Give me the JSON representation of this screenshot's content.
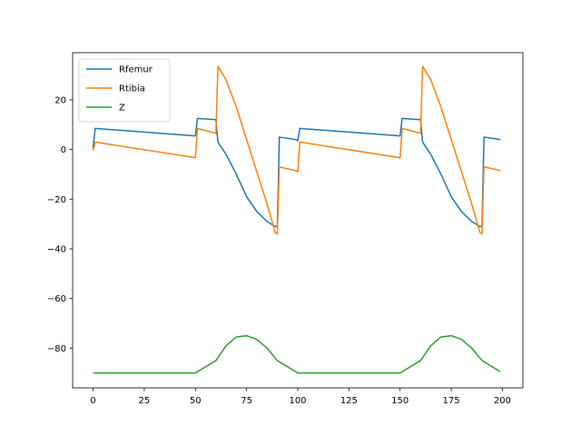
{
  "chart_data": {
    "type": "line",
    "title": "",
    "xlabel": "",
    "ylabel": "",
    "xlim": [
      -10,
      210
    ],
    "ylim": [
      -96,
      39
    ],
    "xticks": [
      0,
      25,
      50,
      75,
      100,
      125,
      150,
      175,
      200
    ],
    "yticks": [
      -80,
      -60,
      -40,
      -20,
      0,
      20
    ],
    "grid": false,
    "legend": "top-left",
    "series": [
      {
        "name": "Rfemur",
        "color": "#1f77b4",
        "x": [
          0,
          1,
          50,
          51,
          60,
          61,
          65,
          70,
          75,
          80,
          85,
          89,
          90,
          91,
          99,
          100,
          101,
          150,
          151,
          160,
          161,
          165,
          170,
          175,
          180,
          185,
          189,
          190,
          191,
          199
        ],
        "y": [
          0.5,
          8.5,
          5.5,
          12.5,
          12,
          3,
          -2,
          -10,
          -19,
          -25,
          -29,
          -31,
          -31,
          5,
          4,
          3.5,
          8.5,
          5.5,
          12.5,
          12,
          3,
          -2,
          -10,
          -19,
          -25,
          -29,
          -31,
          -31,
          5,
          4
        ]
      },
      {
        "name": "Rtibia",
        "color": "#ff7f0e",
        "x": [
          0,
          1,
          50,
          51,
          60,
          61,
          65,
          70,
          75,
          80,
          85,
          89,
          90,
          91,
          99,
          100,
          101,
          150,
          151,
          160,
          161,
          165,
          170,
          175,
          180,
          185,
          189,
          190,
          191,
          199
        ],
        "y": [
          -0.5,
          3,
          -3.3,
          8.5,
          6.5,
          33.5,
          28,
          17,
          4,
          -9,
          -22,
          -33.5,
          -34,
          -7,
          -8.5,
          -9,
          3,
          -3.3,
          8.5,
          6.5,
          33.5,
          28,
          17,
          4,
          -9,
          -22,
          -33.5,
          -34,
          -7,
          -8.5
        ]
      },
      {
        "name": "Z",
        "color": "#2ca02c",
        "x": [
          0,
          50,
          60,
          65,
          70,
          75,
          80,
          85,
          90,
          100,
          150,
          160,
          165,
          170,
          175,
          180,
          185,
          190,
          199
        ],
        "y": [
          -90,
          -90,
          -85,
          -79,
          -75.5,
          -75,
          -76.5,
          -80,
          -85,
          -90,
          -90,
          -85,
          -79,
          -75.5,
          -75,
          -76.5,
          -80,
          -85,
          -89.5
        ]
      }
    ]
  }
}
